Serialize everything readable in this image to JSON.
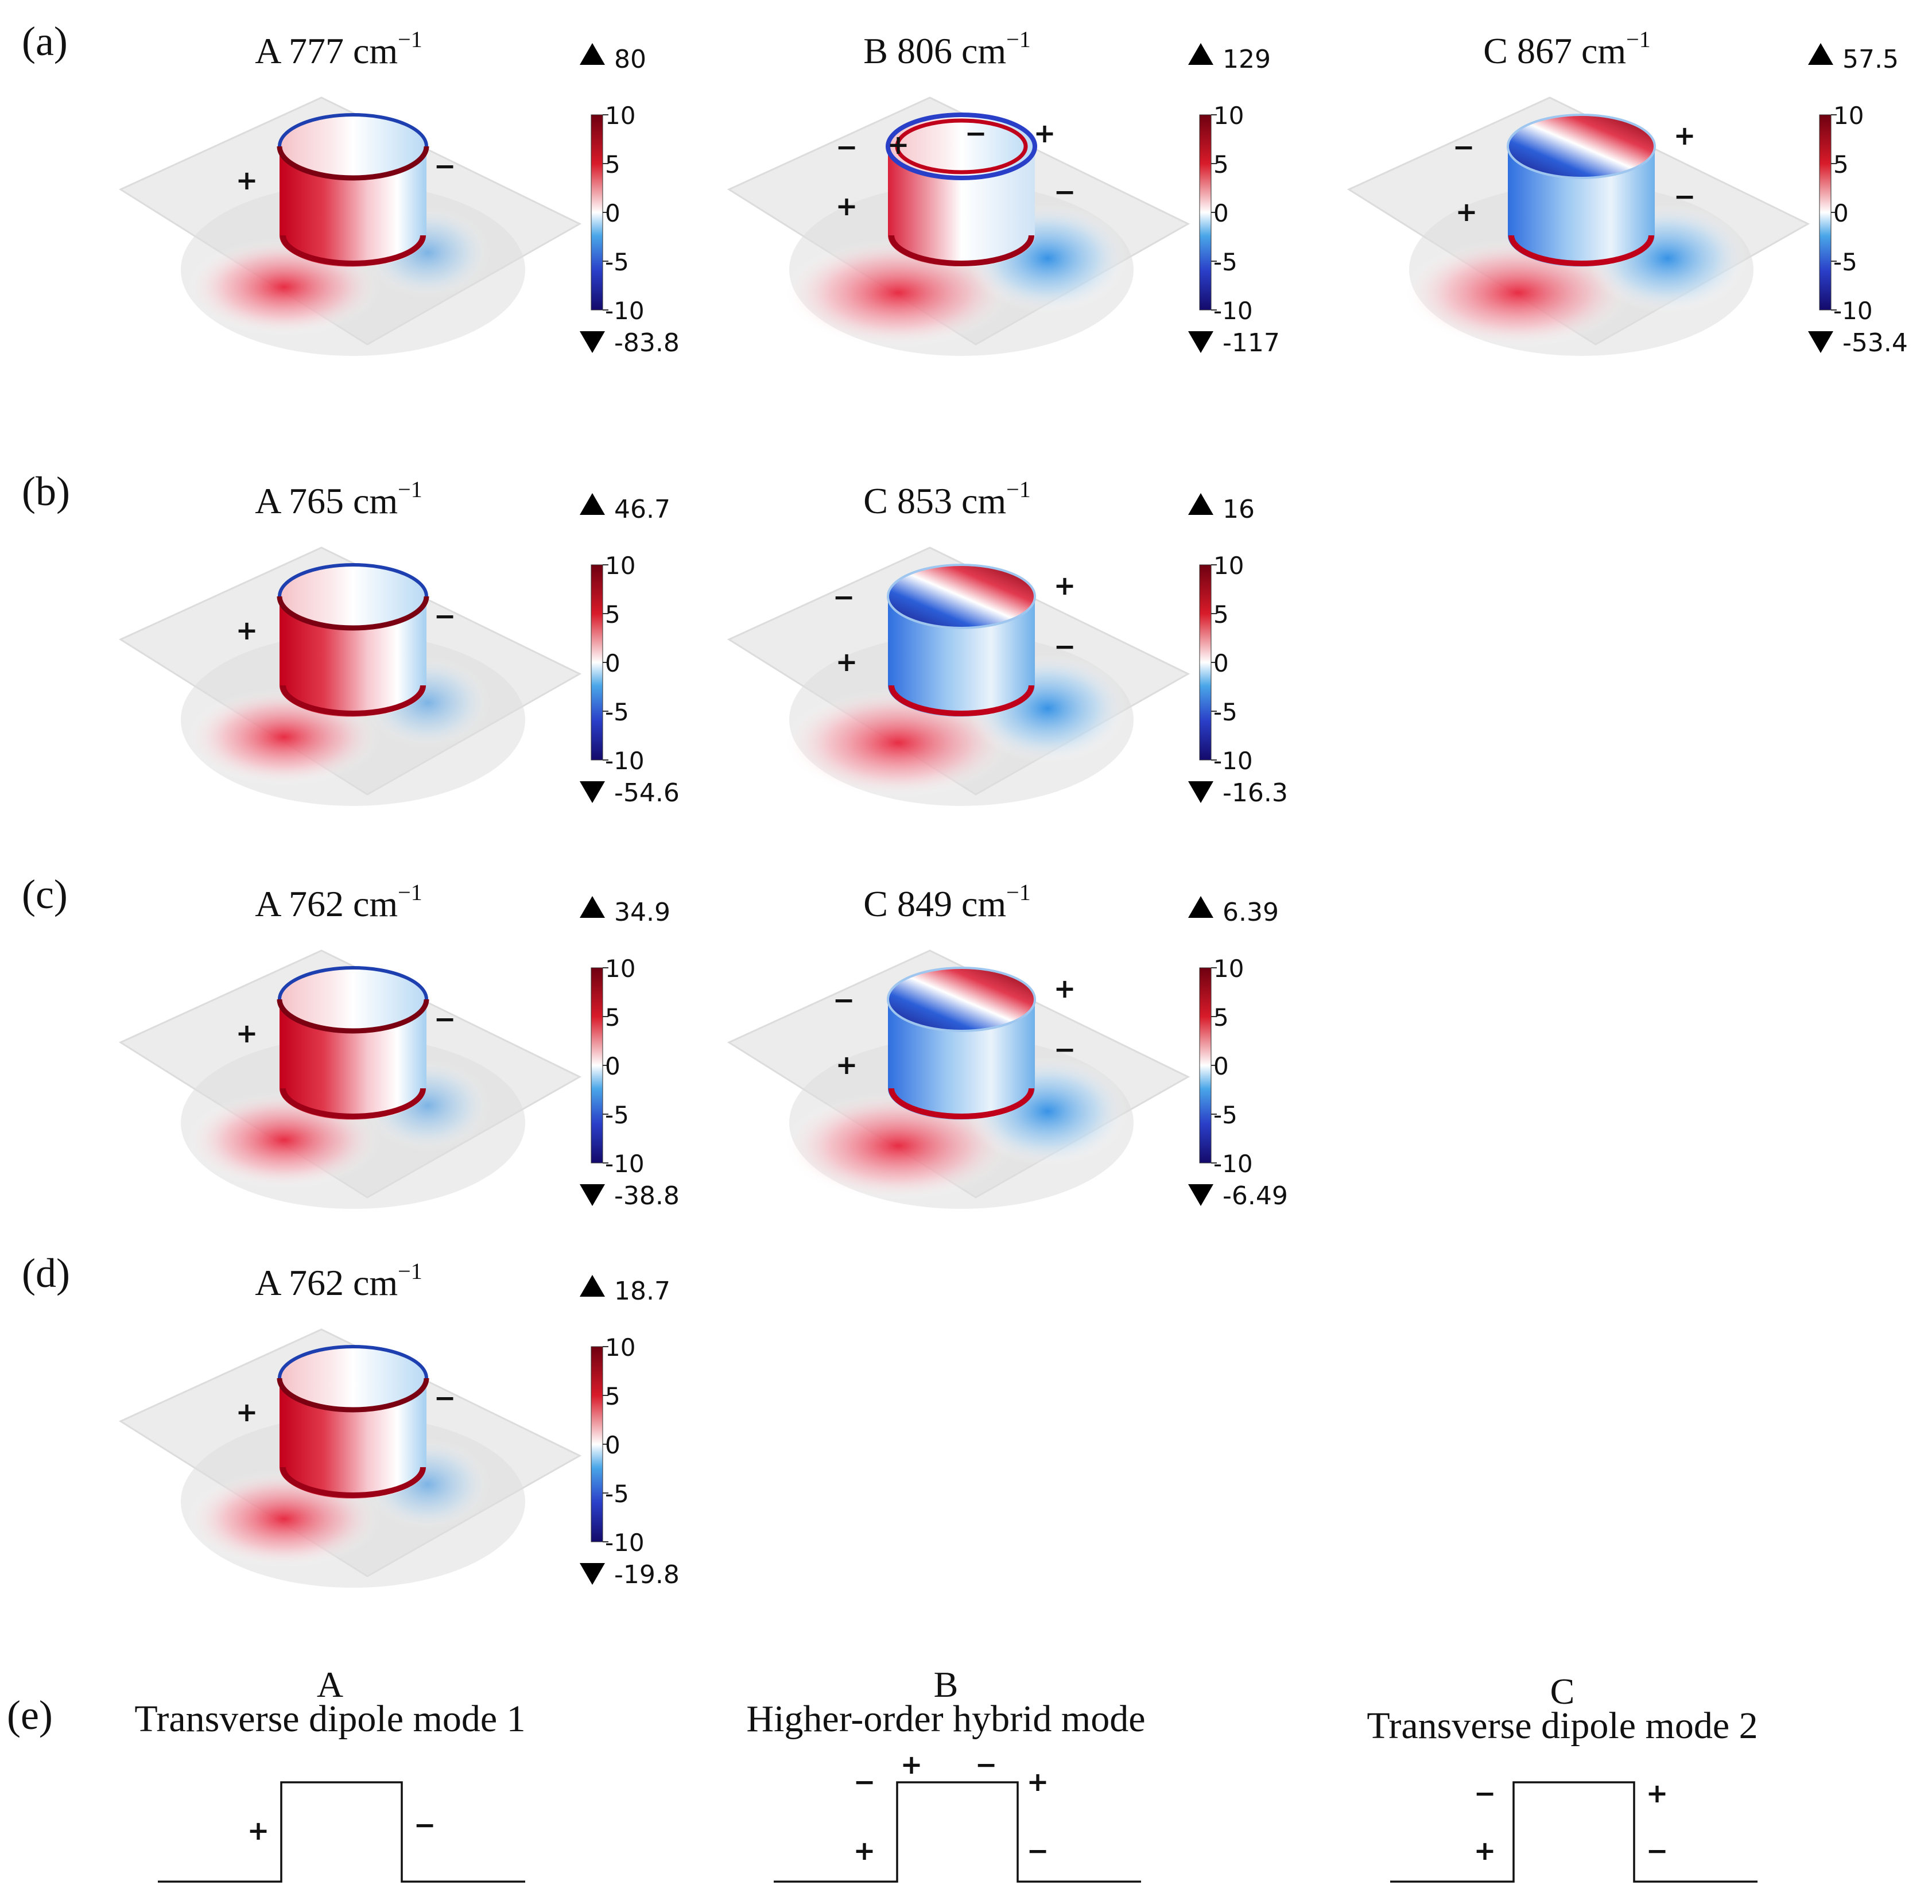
{
  "figure": {
    "rows": [
      {
        "label": "(a)",
        "panels": [
          {
            "mode": "A",
            "wavenumber": "777",
            "unit": "cm",
            "exp": "−1",
            "max": "80",
            "min": "-83.8",
            "type": "A",
            "signs": [
              "+",
              "−"
            ]
          },
          {
            "mode": "B",
            "wavenumber": "806",
            "unit": "cm",
            "exp": "−1",
            "max": "129",
            "min": "-117",
            "type": "B",
            "signs": [
              "−",
              "+",
              "−",
              "+",
              "+",
              "−"
            ]
          },
          {
            "mode": "C",
            "wavenumber": "867",
            "unit": "cm",
            "exp": "−1",
            "max": "57.5",
            "min": "-53.4",
            "type": "C",
            "signs": [
              "−",
              "+",
              "+",
              "−"
            ]
          }
        ]
      },
      {
        "label": "(b)",
        "panels": [
          {
            "mode": "A",
            "wavenumber": "765",
            "unit": "cm",
            "exp": "−1",
            "max": "46.7",
            "min": "-54.6",
            "type": "A",
            "signs": [
              "+",
              "−"
            ]
          },
          {
            "mode": "C",
            "wavenumber": "853",
            "unit": "cm",
            "exp": "−1",
            "max": "16",
            "min": "-16.3",
            "type": "C",
            "signs": [
              "−",
              "+",
              "+",
              "−"
            ]
          }
        ]
      },
      {
        "label": "(c)",
        "panels": [
          {
            "mode": "A",
            "wavenumber": "762",
            "unit": "cm",
            "exp": "−1",
            "max": "34.9",
            "min": "-38.8",
            "type": "A",
            "signs": [
              "+",
              "−"
            ]
          },
          {
            "mode": "C",
            "wavenumber": "849",
            "unit": "cm",
            "exp": "−1",
            "max": "6.39",
            "min": "-6.49",
            "type": "C",
            "signs": [
              "−",
              "+",
              "+",
              "−"
            ]
          }
        ]
      },
      {
        "label": "(d)",
        "panels": [
          {
            "mode": "A",
            "wavenumber": "762",
            "unit": "cm",
            "exp": "−1",
            "max": "18.7",
            "min": "-19.8",
            "type": "A",
            "signs": [
              "+",
              "−"
            ]
          }
        ]
      }
    ],
    "colorbar_ticks": [
      "10",
      "5",
      "0",
      "-5",
      "-10"
    ],
    "schematics": {
      "label": "(e)",
      "items": [
        {
          "letter": "A",
          "name": "Transverse dipole mode 1",
          "signs": [
            "+",
            "−"
          ]
        },
        {
          "letter": "B",
          "name": "Higher-order hybrid mode",
          "signs": [
            "−",
            "+",
            "−",
            "+",
            "+",
            "−"
          ]
        },
        {
          "letter": "C",
          "name": "Transverse dipole mode 2",
          "signs": [
            "−",
            "+",
            "+",
            "−"
          ]
        }
      ]
    },
    "colors": {
      "red": "#c0001a",
      "dark_red": "#6e0010",
      "blue": "#2f6fe0",
      "dark_blue": "#12106e",
      "plane": "#e9e9e9",
      "glow_red": "#f7a7b2",
      "glow_blue": "#a9d4f7"
    }
  }
}
